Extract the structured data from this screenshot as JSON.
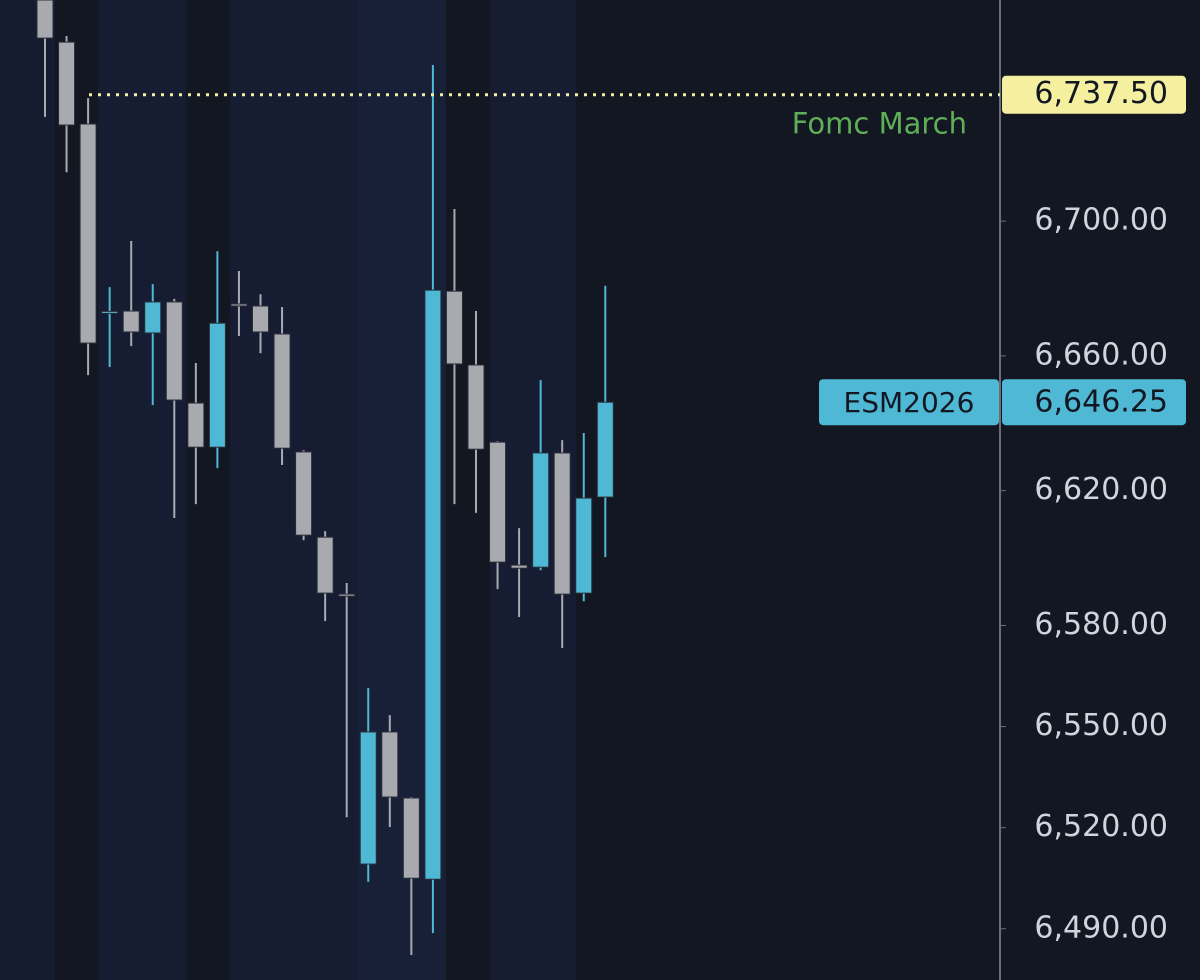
{
  "chart_data": {
    "type": "candlestick",
    "series": [
      {
        "name": "ESM2026",
        "up_color": "#4fb8d4",
        "down_color": "#a9a9b0",
        "candles": [
          {
            "open": 6765.6,
            "high": 6768,
            "low": 6730.9,
            "close": 6754.3
          },
          {
            "open": 6753.1,
            "high": 6754.9,
            "low": 6714.5,
            "close": 6728.5
          },
          {
            "open": 6728.8,
            "high": 6736.5,
            "low": 6654.3,
            "close": 6663.8
          },
          {
            "open": 6673.0,
            "high": 6680.4,
            "low": 6656.7,
            "close": 6673.2
          },
          {
            "open": 6673.3,
            "high": 6694.1,
            "low": 6662.9,
            "close": 6667.1
          },
          {
            "open": 6666.8,
            "high": 6681.3,
            "low": 6645.4,
            "close": 6676.0
          },
          {
            "open": 6676.0,
            "high": 6676.9,
            "low": 6611.9,
            "close": 6646.9
          },
          {
            "open": 6646.0,
            "high": 6657.9,
            "low": 6616.0,
            "close": 6632.9
          },
          {
            "open": 6632.9,
            "high": 6691.1,
            "low": 6626.7,
            "close": 6669.7
          },
          {
            "open": 6675.4,
            "high": 6685.2,
            "low": 6665.9,
            "close": 6675.1
          },
          {
            "open": 6674.8,
            "high": 6678.3,
            "low": 6660.8,
            "close": 6667.1
          },
          {
            "open": 6666.5,
            "high": 6674.5,
            "low": 6627.6,
            "close": 6632.6
          },
          {
            "open": 6631.5,
            "high": 6632.0,
            "low": 6605.3,
            "close": 6606.8
          },
          {
            "open": 6606.2,
            "high": 6608.0,
            "low": 6581.3,
            "close": 6589.6
          },
          {
            "open": 6589.3,
            "high": 6592.6,
            "low": 6523.1,
            "close": 6588.7
          },
          {
            "open": 6509.2,
            "high": 6561.4,
            "low": 6503.9,
            "close": 6548.4
          },
          {
            "open": 6548.4,
            "high": 6553.4,
            "low": 6520.2,
            "close": 6529.1
          },
          {
            "open": 6528.8,
            "high": 6529.1,
            "low": 6482.2,
            "close": 6505.0
          },
          {
            "open": 6504.7,
            "high": 6746.3,
            "low": 6488.7,
            "close": 6679.5
          },
          {
            "open": 6679.2,
            "high": 6703.6,
            "low": 6616.0,
            "close": 6657.6
          },
          {
            "open": 6657.3,
            "high": 6673.3,
            "low": 6613.4,
            "close": 6632.3
          },
          {
            "open": 6634.4,
            "high": 6634.7,
            "low": 6590.8,
            "close": 6598.8
          },
          {
            "open": 6597.9,
            "high": 6608.9,
            "low": 6582.5,
            "close": 6597.0
          },
          {
            "open": 6597.3,
            "high": 6652.8,
            "low": 6596.4,
            "close": 6631.2
          },
          {
            "open": 6631.2,
            "high": 6635.0,
            "low": 6573.3,
            "close": 6589.3
          },
          {
            "open": 6589.6,
            "high": 6637.1,
            "low": 6587.2,
            "close": 6617.8
          },
          {
            "open": 6618.1,
            "high": 6680.8,
            "low": 6600.3,
            "close": 6646.25
          }
        ]
      }
    ],
    "ylim": [
      6474.8,
      6765.6
    ],
    "yticks": [
      {
        "value": 6700,
        "label": "6,700.00"
      },
      {
        "value": 6660,
        "label": "6,660.00"
      },
      {
        "value": 6620,
        "label": "6,620.00"
      },
      {
        "value": 6580,
        "label": "6,580.00"
      },
      {
        "value": 6550,
        "label": "6,550.00"
      },
      {
        "value": 6520,
        "label": "6,520.00"
      },
      {
        "value": 6490,
        "label": "6,490.00"
      }
    ],
    "last_price": {
      "value": 6646.25,
      "label": "6,646.25"
    },
    "level": {
      "name": "Fomc March",
      "value": 6737.5,
      "label": "6,737.50",
      "color": "#f5f0a0"
    }
  }
}
